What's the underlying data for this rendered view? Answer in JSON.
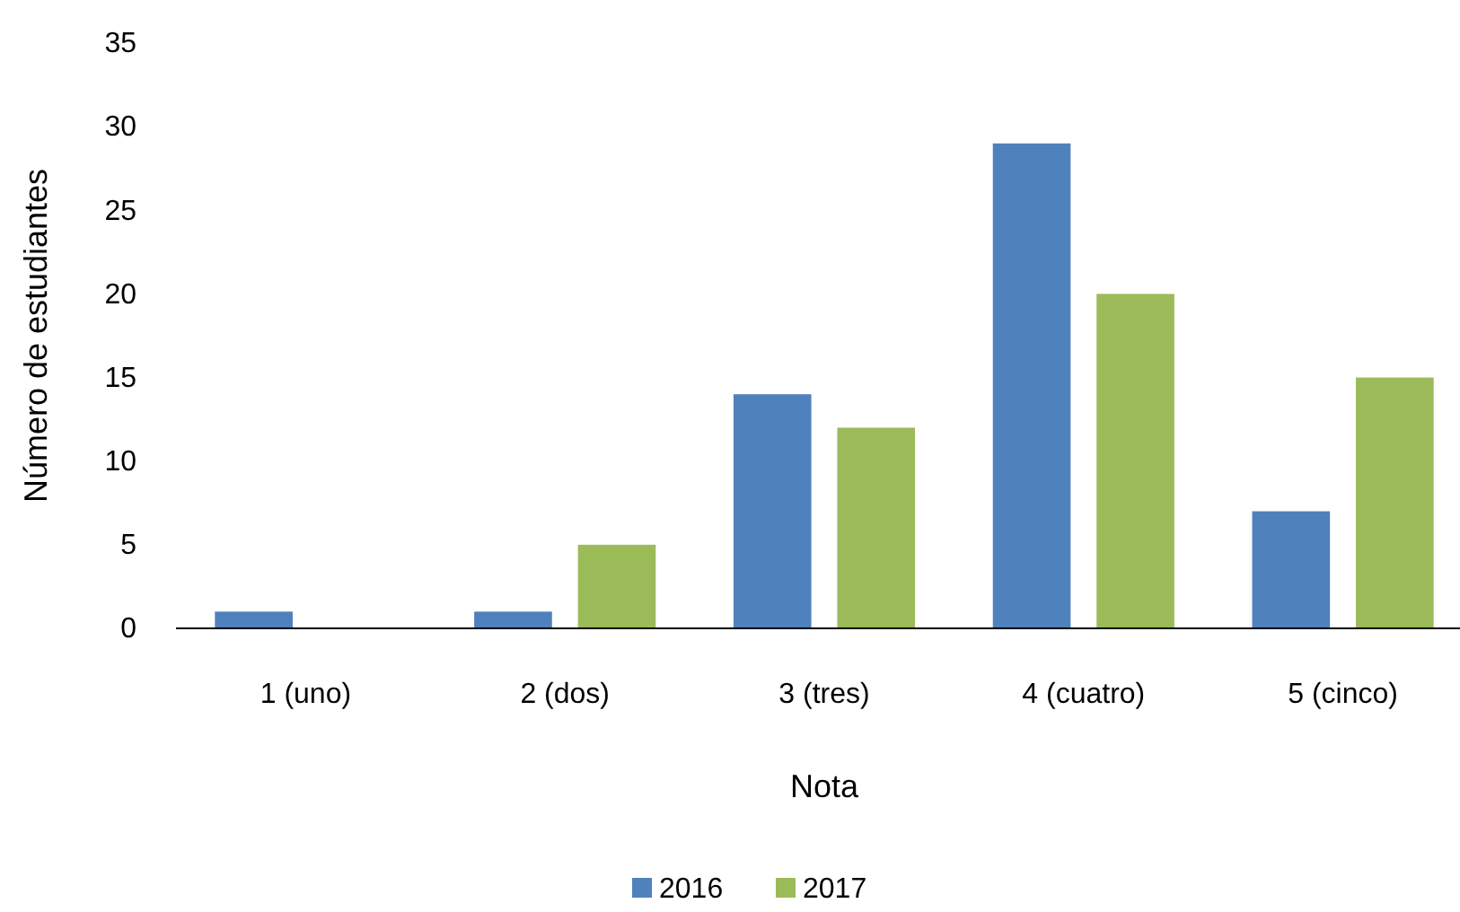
{
  "chart_data": {
    "type": "bar",
    "xlabel": "Nota",
    "ylabel": "Número de estudiantes",
    "categories": [
      "1 (uno)",
      "2 (dos)",
      "3 (tres)",
      "4 (cuatro)",
      "5 (cinco)"
    ],
    "series": [
      {
        "name": "2016",
        "color": "#4f81bd",
        "values": [
          1,
          1,
          14,
          29,
          7
        ]
      },
      {
        "name": "2017",
        "color": "#9bbb59",
        "values": [
          0,
          5,
          12,
          20,
          15
        ]
      }
    ],
    "ylim": [
      0,
      35
    ],
    "yticks": [
      0,
      5,
      10,
      15,
      20,
      25,
      30,
      35
    ],
    "grid": false,
    "legend": "bottom"
  }
}
